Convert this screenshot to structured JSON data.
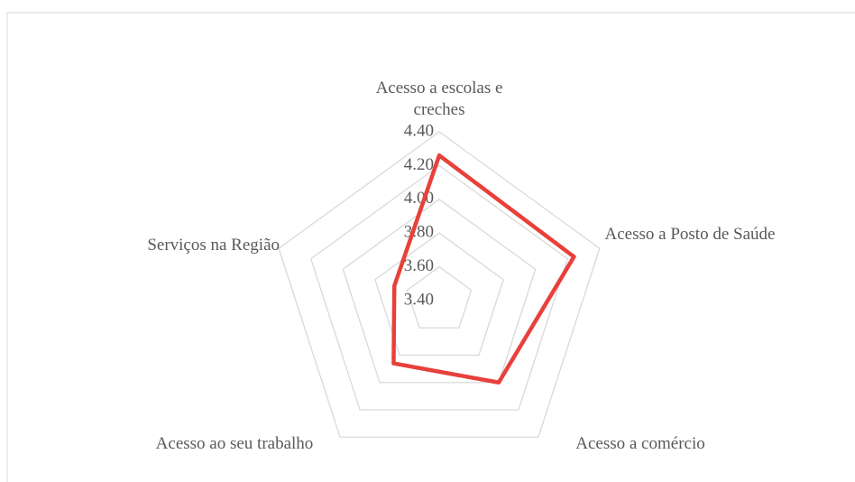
{
  "chart_data": {
    "type": "radar",
    "categories": [
      "Acesso a escolas e creches",
      "Acesso a Posto de Saúde",
      "Acesso a comércio",
      "Acesso ao seu trabalho",
      "Serviços na Região"
    ],
    "series": [
      {
        "color": "#e8403a",
        "values": [
          4.26,
          4.24,
          4.0,
          3.86,
          3.68
        ]
      }
    ],
    "ylim": [
      3.4,
      4.4
    ],
    "yticks": [
      {
        "value": 3.4,
        "label": "3.40"
      },
      {
        "value": 3.6,
        "label": "3.60"
      },
      {
        "value": 3.8,
        "label": "3.80"
      },
      {
        "value": 4.0,
        "label": "4.00"
      },
      {
        "value": 4.2,
        "label": "4.20"
      },
      {
        "value": 4.4,
        "label": "4.40"
      }
    ],
    "grid": true
  }
}
